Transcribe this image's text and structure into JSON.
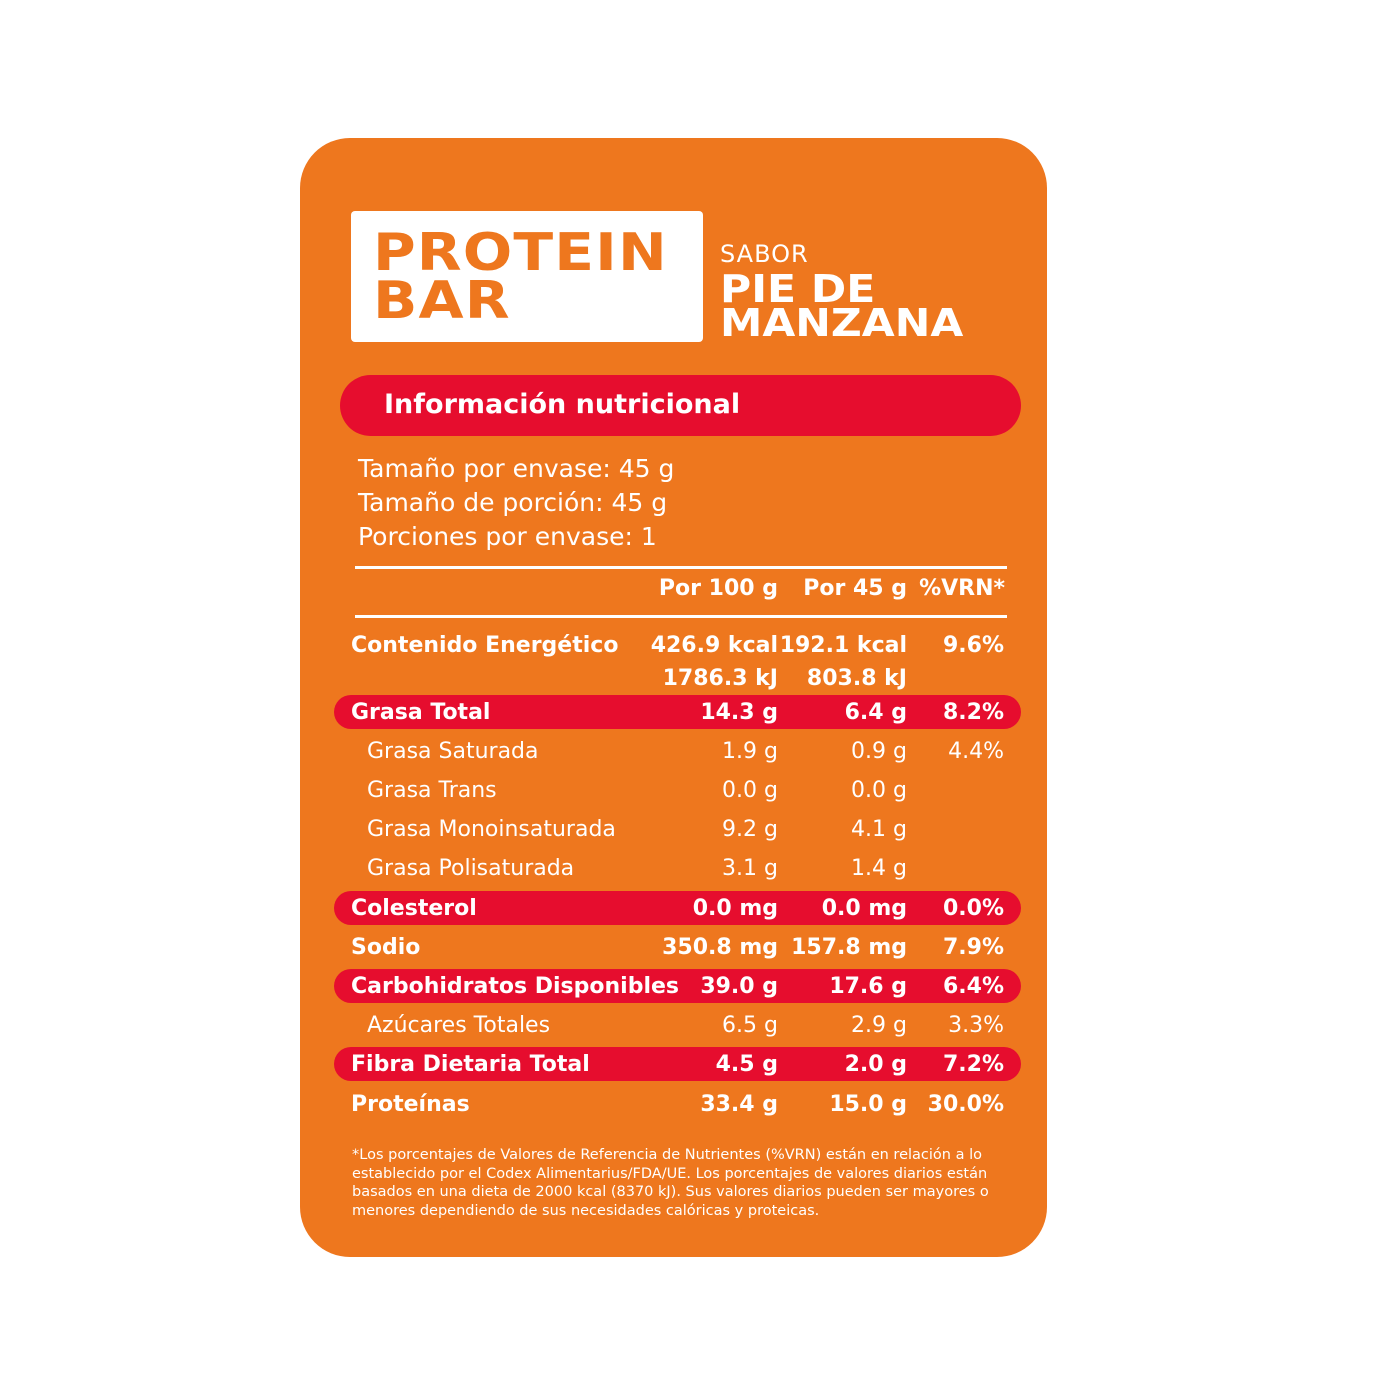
{
  "brand": {
    "line1": "PROTEIN",
    "line2": "BAR"
  },
  "flavor": {
    "label": "SABOR",
    "line1": "PIE DE",
    "line2": "MANZANA"
  },
  "section_title": "Información nutricional",
  "serving": {
    "package_size": "Tamaño por envase: 45 g",
    "portion_size": "Tamaño de porción: 45 g",
    "portions": "Porciones por envase: 1"
  },
  "columns": [
    "Por 100 g",
    "Por 45 g",
    "%VRN*"
  ],
  "rows": [
    {
      "name": "Contenido Energético",
      "per100": "426.9 kcal",
      "perServing": "192.1 kcal",
      "vrn": "9.6%",
      "bold": true,
      "highlight": false,
      "sub": false
    },
    {
      "name": "",
      "per100": "1786.3 kJ",
      "perServing": "803.8 kJ",
      "vrn": "",
      "bold": true,
      "highlight": false,
      "sub": false
    },
    {
      "name": "Grasa Total",
      "per100": "14.3 g",
      "perServing": "6.4 g",
      "vrn": "8.2%",
      "bold": true,
      "highlight": true,
      "sub": false
    },
    {
      "name": "Grasa Saturada",
      "per100": "1.9 g",
      "perServing": "0.9 g",
      "vrn": "4.4%",
      "bold": false,
      "highlight": false,
      "sub": true
    },
    {
      "name": "Grasa Trans",
      "per100": "0.0 g",
      "perServing": "0.0 g",
      "vrn": "",
      "bold": false,
      "highlight": false,
      "sub": true
    },
    {
      "name": "Grasa Monoinsaturada",
      "per100": "9.2 g",
      "perServing": "4.1 g",
      "vrn": "",
      "bold": false,
      "highlight": false,
      "sub": true
    },
    {
      "name": "Grasa Polisaturada",
      "per100": "3.1 g",
      "perServing": "1.4 g",
      "vrn": "",
      "bold": false,
      "highlight": false,
      "sub": true
    },
    {
      "name": "Colesterol",
      "per100": "0.0 mg",
      "perServing": "0.0 mg",
      "vrn": "0.0%",
      "bold": true,
      "highlight": true,
      "sub": false
    },
    {
      "name": "Sodio",
      "per100": "350.8 mg",
      "perServing": "157.8 mg",
      "vrn": "7.9%",
      "bold": true,
      "highlight": false,
      "sub": false
    },
    {
      "name": "Carbohidratos Disponibles",
      "per100": "39.0 g",
      "perServing": "17.6 g",
      "vrn": "6.4%",
      "bold": true,
      "highlight": true,
      "sub": false
    },
    {
      "name": "Azúcares Totales",
      "per100": "6.5 g",
      "perServing": "2.9 g",
      "vrn": "3.3%",
      "bold": false,
      "highlight": false,
      "sub": true
    },
    {
      "name": "Fibra Dietaria Total",
      "per100": "4.5 g",
      "perServing": "2.0 g",
      "vrn": "7.2%",
      "bold": true,
      "highlight": true,
      "sub": false
    },
    {
      "name": "Proteínas",
      "per100": "33.4 g",
      "perServing": "15.0 g",
      "vrn": "30.0%",
      "bold": true,
      "highlight": false,
      "sub": false
    }
  ],
  "footnote": "*Los porcentajes de Valores de Referencia de Nutrientes (%VRN) están en relación a lo establecido por el Codex Alimentarius/FDA/UE. Los porcentajes de valores diarios están basados en una dieta de 2000 kcal (8370 kJ). Sus valores diarios pueden ser mayores o menores dependiendo de sus necesidades calóricas y proteicas.",
  "colors": {
    "orange": "#EE771E",
    "red": "#E60D2E",
    "white": "#FFFFFF"
  }
}
